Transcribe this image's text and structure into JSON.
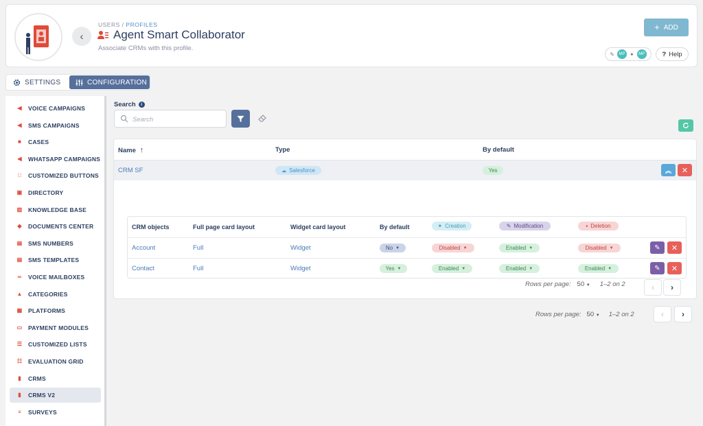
{
  "header": {
    "breadcrumb_users": "USERS",
    "breadcrumb_sep": "/",
    "breadcrumb_profiles": "PROFILES",
    "title": "Agent Smart Collaborator",
    "subtitle": "Associate CRMs with this profile.",
    "add_label": "ADD",
    "mp_badge": "MP",
    "help_label": "Help"
  },
  "tabs": {
    "settings": "SETTINGS",
    "configuration": "CONFIGURATION"
  },
  "sidebar": {
    "items": [
      {
        "label": "VOICE CAMPAIGNS"
      },
      {
        "label": "SMS CAMPAIGNS"
      },
      {
        "label": "CASES"
      },
      {
        "label": "WHATSAPP CAMPAIGNS"
      },
      {
        "label": "CUSTOMIZED BUTTONS"
      },
      {
        "label": "DIRECTORY"
      },
      {
        "label": "KNOWLEDGE BASE"
      },
      {
        "label": "DOCUMENTS CENTER"
      },
      {
        "label": "SMS NUMBERS"
      },
      {
        "label": "SMS TEMPLATES"
      },
      {
        "label": "VOICE MAILBOXES"
      },
      {
        "label": "CATEGORIES"
      },
      {
        "label": "PLATFORMS"
      },
      {
        "label": "PAYMENT MODULES"
      },
      {
        "label": "CUSTOMIZED LISTS"
      },
      {
        "label": "EVALUATION GRID"
      },
      {
        "label": "CRMS"
      },
      {
        "label": "CRMS V2"
      },
      {
        "label": "SURVEYS"
      }
    ],
    "active": "CRMS V2"
  },
  "search": {
    "label": "Search",
    "placeholder": "Search"
  },
  "table": {
    "headers": {
      "name": "Name",
      "type": "Type",
      "by_default": "By default"
    },
    "rows": [
      {
        "name": "CRM SF",
        "type": "Salesforce",
        "by_default": "Yes"
      }
    ]
  },
  "sub_table": {
    "headers": {
      "crm_objects": "CRM objects",
      "full_page": "Full page card layout",
      "widget": "Widget card layout",
      "by_default": "By default",
      "creation": "Creation",
      "modification": "Modification",
      "deletion": "Deletion"
    },
    "rows": [
      {
        "object": "Account",
        "full_page": "Full",
        "widget": "Widget",
        "by_default": "No",
        "creation": "Disabled",
        "modification": "Enabled",
        "deletion": "Disabled"
      },
      {
        "object": "Contact",
        "full_page": "Full",
        "widget": "Widget",
        "by_default": "Yes",
        "creation": "Enabled",
        "modification": "Enabled",
        "deletion": "Enabled"
      }
    ],
    "pager": {
      "rows_per_page_label": "Rows per page:",
      "rows_per_page": "50",
      "range": "1–2 on 2"
    }
  },
  "pager": {
    "rows_per_page_label": "Rows per page:",
    "rows_per_page": "50",
    "range": "1–2 on 2"
  },
  "colors": {
    "primary": "#56709c",
    "add": "#7fb8d0",
    "danger": "#e8605a",
    "edit": "#7a5fa8",
    "success": "#55c7a6",
    "icon_red": "#e04a3a"
  }
}
